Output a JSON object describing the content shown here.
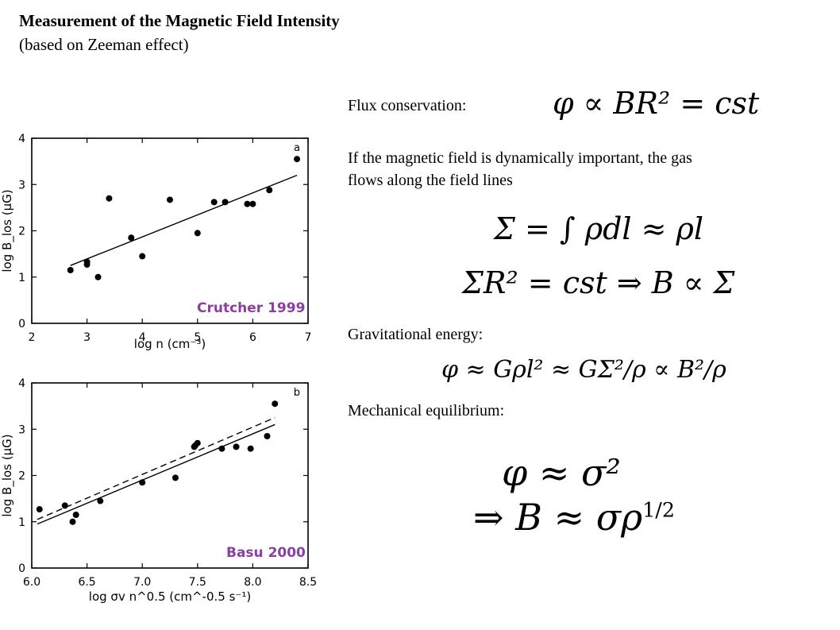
{
  "page": {
    "title": "Measurement of the Magnetic Field Intensity",
    "subtitle": "(based on Zeeman effect)"
  },
  "text": {
    "flux_label": "Flux conservation:",
    "field_line1": "If the magnetic field is dynamically important, the gas",
    "field_line2": "flows along the field lines",
    "grav_label": "Gravitational energy:",
    "mech_label": "Mechanical equilibrium:"
  },
  "equations": {
    "flux": "φ ∝ BR² = cst",
    "sigma": "Σ = ∫ ρdl ≈ ρl",
    "sigma_r": "ΣR² = cst ⇒ B ∝ Σ",
    "grav": "φ ≈ Gρl² ≈ GΣ²/ρ ∝ B²/ρ",
    "mech1": "φ ≈ σ²",
    "mech2": "⇒ B ≈ σρ^1/2"
  },
  "colors": {
    "label_purple": "#8b3fa0"
  },
  "chart_data": [
    {
      "type": "scatter",
      "panel": "a",
      "annotation": "Crutcher 1999",
      "xlabel": "log n (cm⁻³)",
      "ylabel": "log B_los (μG)",
      "xlim": [
        2,
        7
      ],
      "ylim": [
        0,
        4
      ],
      "xticks": [
        2,
        3,
        4,
        5,
        6,
        7
      ],
      "yticks": [
        0,
        1,
        2,
        3,
        4
      ],
      "points": [
        [
          2.7,
          1.15
        ],
        [
          3.0,
          1.33
        ],
        [
          3.0,
          1.27
        ],
        [
          3.2,
          1.0
        ],
        [
          3.4,
          2.7
        ],
        [
          3.8,
          1.85
        ],
        [
          4.0,
          1.45
        ],
        [
          4.5,
          2.67
        ],
        [
          5.0,
          1.95
        ],
        [
          5.3,
          2.62
        ],
        [
          5.5,
          2.62
        ],
        [
          5.9,
          2.58
        ],
        [
          6.0,
          2.58
        ],
        [
          6.3,
          2.88
        ],
        [
          6.8,
          3.55
        ]
      ],
      "fit_lines": [
        {
          "style": "solid",
          "x": [
            2.7,
            6.8
          ],
          "y": [
            1.25,
            3.2
          ]
        }
      ]
    },
    {
      "type": "scatter",
      "panel": "b",
      "annotation": "Basu 2000",
      "xlabel": "log σv n^0.5 (cm^-0.5 s⁻¹)",
      "ylabel": "log B_los (μG)",
      "xlim": [
        6.0,
        8.5
      ],
      "ylim": [
        0,
        4
      ],
      "xticks": [
        6.0,
        6.5,
        7.0,
        7.5,
        8.0,
        8.5
      ],
      "yticks": [
        0,
        1,
        2,
        3,
        4
      ],
      "points": [
        [
          6.07,
          1.27
        ],
        [
          6.3,
          1.35
        ],
        [
          6.37,
          1.0
        ],
        [
          6.4,
          1.15
        ],
        [
          6.62,
          1.45
        ],
        [
          7.0,
          1.85
        ],
        [
          7.3,
          1.95
        ],
        [
          7.47,
          2.62
        ],
        [
          7.5,
          2.7
        ],
        [
          7.48,
          2.65
        ],
        [
          7.72,
          2.58
        ],
        [
          7.85,
          2.62
        ],
        [
          7.98,
          2.58
        ],
        [
          8.13,
          2.85
        ],
        [
          8.2,
          3.55
        ]
      ],
      "fit_lines": [
        {
          "style": "solid",
          "x": [
            6.05,
            8.2
          ],
          "y": [
            0.95,
            3.1
          ]
        },
        {
          "style": "dashed",
          "x": [
            6.05,
            8.2
          ],
          "y": [
            1.05,
            3.25
          ]
        }
      ]
    }
  ]
}
